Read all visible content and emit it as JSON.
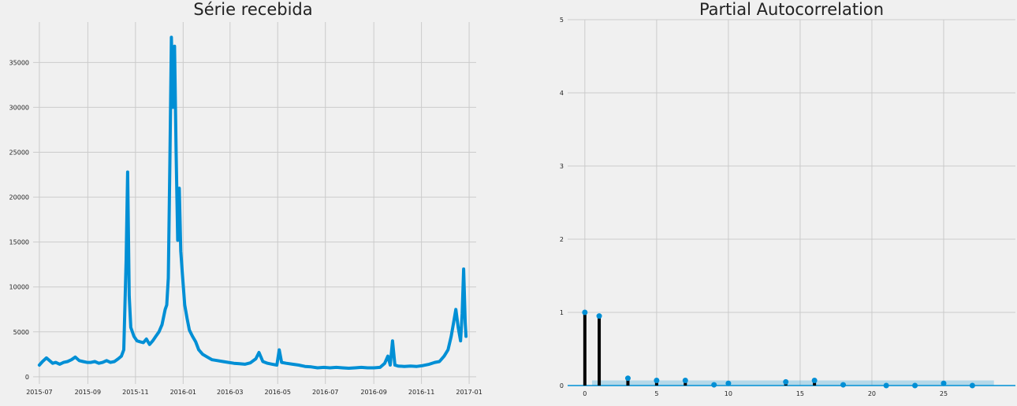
{
  "chart_data": [
    {
      "type": "line",
      "title": "Série recebida",
      "xlabel": "",
      "ylabel": "",
      "grid": true,
      "color": "#008fd5",
      "x_ticks": [
        "2015-07",
        "2015-09",
        "2015-11",
        "2016-01",
        "2016-03",
        "2016-05",
        "2016-07",
        "2016-09",
        "2016-11",
        "2017-01"
      ],
      "y_ticks": [
        "0",
        "5000",
        "10000",
        "15000",
        "20000",
        "25000",
        "30000",
        "35000"
      ],
      "xlim": [
        "2015-06-23",
        "2017-01-10"
      ],
      "ylim": [
        -800,
        39500
      ],
      "series": [
        {
          "x": [
            "2015-07-01",
            "2015-07-05",
            "2015-07-10",
            "2015-07-14",
            "2015-07-18",
            "2015-07-22",
            "2015-07-27",
            "2015-08-01",
            "2015-08-06",
            "2015-08-11",
            "2015-08-16",
            "2015-08-21",
            "2015-08-26",
            "2015-08-31",
            "2015-09-05",
            "2015-09-10",
            "2015-09-15",
            "2015-09-20",
            "2015-09-25",
            "2015-09-30",
            "2015-10-05",
            "2015-10-10",
            "2015-10-14",
            "2015-10-17",
            "2015-10-20",
            "2015-10-22",
            "2015-10-24",
            "2015-10-26",
            "2015-10-30",
            "2015-11-03",
            "2015-11-07",
            "2015-11-11",
            "2015-11-15",
            "2015-11-19",
            "2015-11-23",
            "2015-11-27",
            "2015-12-01",
            "2015-12-05",
            "2015-12-09",
            "2015-12-11",
            "2015-12-13",
            "2015-12-15",
            "2015-12-17",
            "2015-12-19",
            "2015-12-21",
            "2015-12-23",
            "2015-12-25",
            "2015-12-27",
            "2015-12-29",
            "2015-12-31",
            "2016-01-03",
            "2016-01-06",
            "2016-01-09",
            "2016-01-13",
            "2016-01-17",
            "2016-01-21",
            "2016-01-26",
            "2016-02-01",
            "2016-02-07",
            "2016-02-14",
            "2016-02-21",
            "2016-02-28",
            "2016-03-06",
            "2016-03-13",
            "2016-03-20",
            "2016-03-27",
            "2016-04-03",
            "2016-04-07",
            "2016-04-12",
            "2016-04-18",
            "2016-04-24",
            "2016-04-30",
            "2016-05-03",
            "2016-05-06",
            "2016-05-12",
            "2016-05-20",
            "2016-05-28",
            "2016-06-05",
            "2016-06-13",
            "2016-06-21",
            "2016-06-29",
            "2016-07-07",
            "2016-07-15",
            "2016-07-23",
            "2016-07-31",
            "2016-08-08",
            "2016-08-16",
            "2016-08-24",
            "2016-09-01",
            "2016-09-09",
            "2016-09-15",
            "2016-09-19",
            "2016-09-22",
            "2016-09-25",
            "2016-09-28",
            "2016-10-02",
            "2016-10-10",
            "2016-10-18",
            "2016-10-26",
            "2016-11-03",
            "2016-11-11",
            "2016-11-18",
            "2016-11-24",
            "2016-11-30",
            "2016-12-05",
            "2016-12-09",
            "2016-12-12",
            "2016-12-15",
            "2016-12-18",
            "2016-12-21",
            "2016-12-23",
            "2016-12-25",
            "2016-12-26",
            "2016-12-27",
            "2016-12-28"
          ],
          "values": [
            1300,
            1700,
            2100,
            1800,
            1500,
            1600,
            1400,
            1600,
            1700,
            1900,
            2200,
            1800,
            1700,
            1600,
            1600,
            1700,
            1500,
            1600,
            1800,
            1600,
            1700,
            2000,
            2300,
            3000,
            13000,
            22800,
            9000,
            5500,
            4500,
            4000,
            3900,
            3800,
            4200,
            3600,
            4000,
            4500,
            5000,
            5800,
            7500,
            8000,
            11000,
            24000,
            37800,
            30000,
            36800,
            25000,
            15200,
            21000,
            14000,
            11500,
            8000,
            6500,
            5200,
            4500,
            3900,
            3000,
            2500,
            2200,
            1900,
            1800,
            1700,
            1600,
            1500,
            1450,
            1400,
            1550,
            2000,
            2700,
            1700,
            1500,
            1400,
            1300,
            3000,
            1600,
            1500,
            1400,
            1300,
            1150,
            1100,
            1000,
            1050,
            1000,
            1050,
            1000,
            950,
            1000,
            1050,
            1000,
            1000,
            1050,
            1500,
            2300,
            1300,
            4000,
            1300,
            1200,
            1150,
            1200,
            1150,
            1250,
            1400,
            1600,
            1700,
            2300,
            3000,
            4500,
            6000,
            7500,
            5500,
            4000,
            7000,
            12000,
            9000,
            6000,
            4500
          ]
        }
      ]
    },
    {
      "type": "bar",
      "title": "Partial Autocorrelation",
      "xlabel": "",
      "ylabel": "",
      "grid": true,
      "color": "#008fd5",
      "stem_color": "#000000",
      "x_ticks": [
        "0",
        "5",
        "10",
        "15",
        "20",
        "25"
      ],
      "y_ticks": [
        "0",
        "1",
        "2",
        "3",
        "4",
        "5"
      ],
      "xlim": [
        -1.2,
        30
      ],
      "ylim": [
        0,
        5
      ],
      "confidence_band": 0.07,
      "lags": [
        0,
        1,
        3,
        5,
        7,
        9,
        10,
        14,
        16,
        18,
        21,
        23,
        25,
        27
      ],
      "values": [
        1.0,
        0.95,
        0.1,
        0.07,
        0.07,
        0.01,
        0.03,
        0.05,
        0.07,
        0.01,
        0.0,
        0.0,
        0.03,
        0.0
      ]
    }
  ]
}
